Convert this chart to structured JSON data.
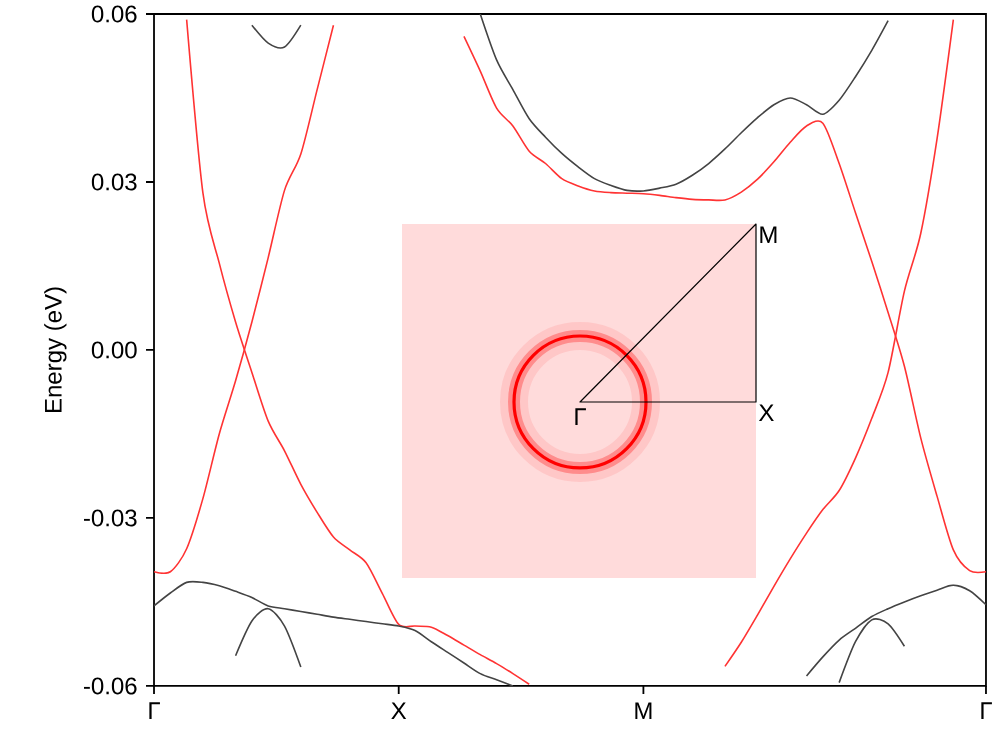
{
  "chart_data": {
    "type": "line",
    "ylabel": "Energy (eV)",
    "ylim": [
      -0.06,
      0.06
    ],
    "categories": [
      "Γ",
      null,
      null,
      null,
      null,
      null,
      null,
      null,
      null,
      null,
      null,
      null,
      null,
      null,
      null,
      "X",
      null,
      null,
      null,
      null,
      null,
      null,
      null,
      null,
      null,
      null,
      null,
      null,
      null,
      null,
      "M",
      null,
      null,
      null,
      null,
      null,
      null,
      null,
      null,
      null,
      null,
      null,
      null,
      null,
      null,
      null,
      null,
      null,
      null,
      null,
      null,
      "Γ"
    ],
    "yticks": [
      {
        "value": -0.06,
        "label": "-0.06"
      },
      {
        "value": -0.03,
        "label": "-0.03"
      },
      {
        "value": 0,
        "label": "0.00"
      },
      {
        "value": 0.03,
        "label": "0.03"
      },
      {
        "value": 0.06,
        "label": "0.06"
      }
    ],
    "annotations": [
      "Γ",
      "X",
      "M"
    ],
    "series": [
      {
        "color": "#ff3333",
        "values": [
          -0.0396,
          -0.0396,
          -0.0355,
          -0.0265,
          -0.015,
          -0.0055,
          0.005,
          0.0165,
          0.0285,
          0.035,
          0.0465,
          0.058,
          null,
          null,
          null,
          null,
          null,
          null,
          null,
          null,
          null,
          null,
          null,
          null,
          null,
          null,
          null,
          null,
          null,
          null,
          null,
          null,
          null,
          null,
          null,
          null,
          null,
          null,
          null,
          null,
          null,
          null,
          null,
          null,
          null,
          null,
          null,
          null,
          null,
          null,
          null,
          null
        ]
      },
      {
        "color": "#ff3333",
        "values": [
          null,
          null,
          0.059,
          0.028,
          0.0155,
          0.005,
          -0.004,
          -0.0127,
          -0.018,
          -0.024,
          -0.029,
          -0.0334,
          -0.0357,
          -0.038,
          -0.0435,
          -0.049,
          -0.0493,
          -0.0495,
          -0.051,
          -0.0527,
          -0.0544,
          -0.056,
          -0.0578,
          -0.0597,
          null,
          null,
          null,
          null,
          null,
          null,
          null,
          null,
          null,
          null,
          null,
          null,
          null,
          null,
          null,
          null,
          null,
          null,
          null,
          null,
          null,
          null,
          null,
          null,
          null,
          null,
          null,
          null
        ]
      },
      {
        "color": "#ff3333",
        "values": [
          null,
          null,
          null,
          null,
          null,
          null,
          null,
          null,
          null,
          null,
          null,
          null,
          null,
          null,
          null,
          null,
          null,
          null,
          null,
          0.056,
          0.0498,
          0.0432,
          0.04,
          0.0355,
          0.0333,
          0.0306,
          0.0293,
          0.0284,
          0.0281,
          0.028,
          0.0279,
          0.0276,
          0.0272,
          0.0269,
          0.0268,
          0.0268,
          0.0282,
          0.0305,
          0.0336,
          0.0371,
          0.04,
          0.0405,
          0.0333,
          0.0245,
          0.0158,
          0.0067,
          -0.0029,
          -0.0157,
          -0.0261,
          -0.0357,
          -0.0394,
          -0.0396
        ]
      },
      {
        "color": "#ff3333",
        "values": [
          null,
          null,
          null,
          null,
          null,
          null,
          null,
          null,
          null,
          null,
          null,
          null,
          null,
          null,
          null,
          null,
          null,
          null,
          null,
          null,
          null,
          null,
          null,
          null,
          null,
          null,
          null,
          null,
          null,
          null,
          null,
          null,
          null,
          null,
          null,
          -0.0565,
          -0.0522,
          -0.0473,
          -0.0422,
          -0.0373,
          -0.0327,
          -0.0285,
          -0.0251,
          -0.0193,
          -0.0122,
          -0.004,
          0.0105,
          0.0208,
          0.0377,
          0.059,
          null,
          null
        ]
      },
      {
        "color": "#444444",
        "values": [
          null,
          null,
          null,
          null,
          null,
          null,
          0.058,
          0.0548,
          0.0541,
          0.058,
          null,
          null,
          null,
          null,
          null,
          null,
          null,
          null,
          null,
          null,
          null,
          null,
          null,
          null,
          null,
          null,
          null,
          null,
          null,
          null,
          null,
          null,
          null,
          null,
          null,
          null,
          null,
          null,
          null,
          null,
          null,
          null,
          null,
          null,
          null,
          null,
          null,
          null,
          null,
          null,
          null,
          null
        ]
      },
      {
        "color": "#444444",
        "values": [
          null,
          null,
          null,
          null,
          null,
          null,
          null,
          null,
          null,
          null,
          null,
          null,
          null,
          null,
          null,
          null,
          null,
          null,
          null,
          null,
          0.06,
          0.0518,
          0.0465,
          0.0413,
          0.038,
          0.0351,
          0.0327,
          0.0306,
          0.0294,
          0.0285,
          0.0284,
          0.0289,
          0.0296,
          0.0312,
          0.0333,
          0.0359,
          0.0388,
          0.0415,
          0.0438,
          0.045,
          0.0438,
          0.0421,
          0.0446,
          0.0488,
          0.0535,
          0.0588,
          null,
          null,
          null,
          null,
          null,
          null
        ]
      },
      {
        "color": "#444444",
        "values": [
          -0.0457,
          -0.0434,
          -0.0415,
          -0.0415,
          -0.0421,
          -0.0431,
          -0.0442,
          -0.0457,
          -0.0462,
          -0.0467,
          -0.0472,
          -0.0477,
          -0.0481,
          -0.0485,
          -0.0489,
          -0.0493,
          -0.0501,
          -0.0521,
          -0.054,
          -0.0559,
          -0.0578,
          -0.0589,
          -0.06,
          null,
          null,
          null,
          null,
          null,
          null,
          null,
          null,
          null,
          null,
          null,
          null,
          null,
          null,
          null,
          null,
          null,
          null,
          null,
          null,
          null,
          null,
          null,
          null,
          null,
          null,
          null,
          null,
          null
        ]
      },
      {
        "color": "#444444",
        "values": [
          null,
          null,
          null,
          null,
          null,
          -0.0546,
          -0.0484,
          -0.0462,
          -0.0493,
          -0.0566,
          null,
          null,
          null,
          null,
          null,
          null,
          null,
          null,
          null,
          null,
          null,
          null,
          null,
          null,
          null,
          null,
          null,
          null,
          null,
          null,
          null,
          null,
          null,
          null,
          null,
          null,
          null,
          null,
          null,
          null,
          null,
          null,
          null,
          null,
          null,
          null,
          null,
          null,
          null,
          null,
          null,
          null
        ]
      },
      {
        "color": "#444444",
        "values": [
          null,
          null,
          null,
          null,
          null,
          null,
          null,
          null,
          null,
          null,
          null,
          null,
          null,
          null,
          null,
          null,
          null,
          null,
          null,
          null,
          null,
          null,
          null,
          null,
          null,
          null,
          null,
          null,
          null,
          null,
          null,
          null,
          null,
          null,
          null,
          null,
          null,
          null,
          null,
          null,
          -0.0582,
          -0.0548,
          -0.0518,
          -0.0497,
          -0.0476,
          -0.0462,
          -0.045,
          -0.0439,
          -0.0429,
          -0.042,
          -0.043,
          -0.0455
        ]
      },
      {
        "color": "#444444",
        "values": [
          null,
          null,
          null,
          null,
          null,
          null,
          null,
          null,
          null,
          null,
          null,
          null,
          null,
          null,
          null,
          null,
          null,
          null,
          null,
          null,
          null,
          null,
          null,
          null,
          null,
          null,
          null,
          null,
          null,
          null,
          null,
          null,
          null,
          null,
          null,
          null,
          null,
          null,
          null,
          null,
          null,
          null,
          -0.0594,
          -0.0521,
          -0.0482,
          -0.0489,
          -0.0529,
          null,
          null,
          null,
          null,
          null
        ]
      }
    ]
  }
}
